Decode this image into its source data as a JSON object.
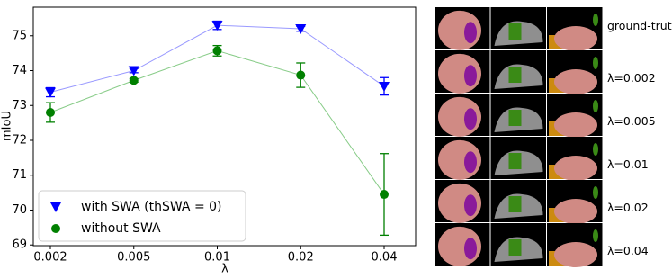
{
  "chart_data": {
    "type": "line",
    "xlabel": "λ",
    "ylabel": "mIoU",
    "categories": [
      "0.002",
      "0.005",
      "0.01",
      "0.02",
      "0.04"
    ],
    "series": [
      {
        "name": "with SWA (thSWA = 0)",
        "color": "#0000ff",
        "line_color": "#9999ff",
        "marker": "triangle",
        "values": [
          73.38,
          74.0,
          75.3,
          75.2,
          73.55
        ],
        "errors": [
          0.13,
          0.06,
          0.12,
          0.07,
          0.25
        ]
      },
      {
        "name": "without SWA",
        "color": "#008000",
        "line_color": "#88cc88",
        "marker": "circle",
        "values": [
          72.8,
          73.72,
          74.57,
          73.87,
          70.45
        ],
        "errors": [
          0.28,
          0.05,
          0.15,
          0.35,
          1.17
        ]
      }
    ],
    "ylim": [
      68.98,
      75.82
    ],
    "yticks": [
      69,
      70,
      71,
      72,
      73,
      74,
      75
    ],
    "legend": "lower left"
  },
  "panel": {
    "row_labels": [
      "ground-truth",
      "λ=0.002",
      "λ=0.005",
      "λ=0.01",
      "λ=0.02",
      "λ=0.04"
    ]
  }
}
